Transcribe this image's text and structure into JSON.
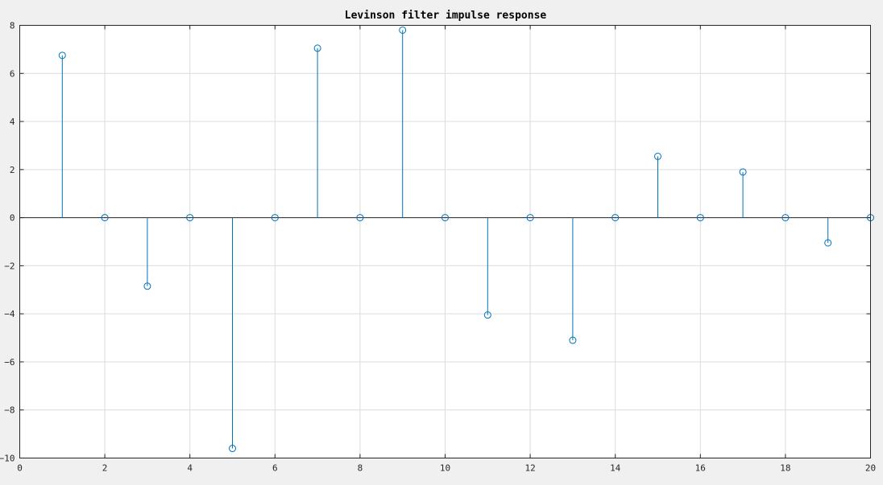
{
  "chart_data": {
    "type": "stem",
    "title": "Levinson filter impulse response",
    "xlabel": "",
    "ylabel": "",
    "xlim": [
      0,
      20
    ],
    "ylim": [
      -10,
      8
    ],
    "xticks": [
      0,
      2,
      4,
      6,
      8,
      10,
      12,
      14,
      16,
      18,
      20
    ],
    "yticks": [
      -10,
      -8,
      -6,
      -4,
      -2,
      0,
      2,
      4,
      6,
      8
    ],
    "grid": true,
    "series": [
      {
        "name": "impulse response",
        "color": "#0072bd",
        "x": [
          1,
          2,
          3,
          4,
          5,
          6,
          7,
          8,
          9,
          10,
          11,
          12,
          13,
          14,
          15,
          16,
          17,
          18,
          19,
          20
        ],
        "values": [
          6.75,
          0,
          -2.85,
          0,
          -9.6,
          0,
          7.05,
          0,
          7.8,
          0,
          -4.05,
          0,
          -5.1,
          0,
          2.55,
          0,
          1.9,
          0,
          -1.05,
          0
        ]
      }
    ]
  }
}
